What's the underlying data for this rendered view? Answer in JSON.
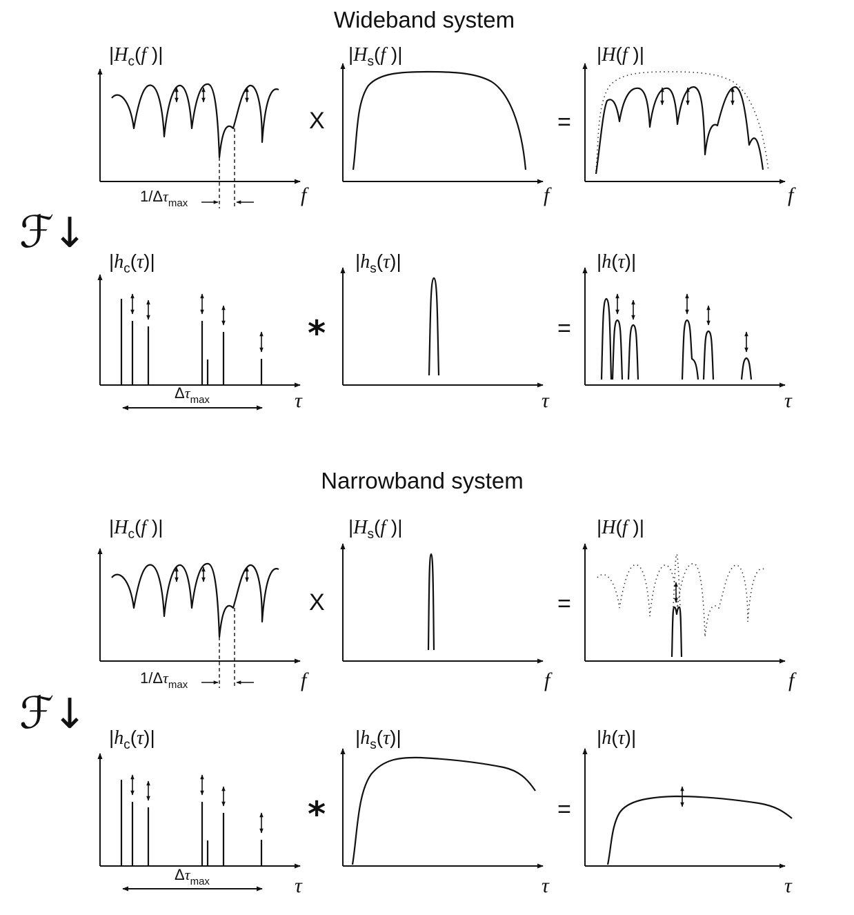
{
  "sections": [
    {
      "title": "Wideband system",
      "freq_row": {
        "channel": {
          "label": "|H_c(f )|",
          "axis": "f",
          "annotation": "1/Δτ_max"
        },
        "operator": "X",
        "system": {
          "label": "|H_s(f )|",
          "axis": "f"
        },
        "equals": "=",
        "result": {
          "label": "|H(f )|",
          "axis": "f"
        }
      },
      "fourier": "ℱ↓",
      "time_row": {
        "channel": {
          "label": "|h_c(τ)|",
          "axis": "τ",
          "annotation": "Δτ_max"
        },
        "operator": "*",
        "system": {
          "label": "|h_s(τ)|",
          "axis": "τ"
        },
        "equals": "=",
        "result": {
          "label": "|h(τ)|",
          "axis": "τ"
        }
      }
    },
    {
      "title": "Narrowband system",
      "freq_row": {
        "channel": {
          "label": "|H_c(f )|",
          "axis": "f",
          "annotation": "1/Δτ_max"
        },
        "operator": "X",
        "system": {
          "label": "|H_s(f )|",
          "axis": "f"
        },
        "equals": "=",
        "result": {
          "label": "|H(f )|",
          "axis": "f"
        }
      },
      "fourier": "ℱ↓",
      "time_row": {
        "channel": {
          "label": "|h_c(τ)|",
          "axis": "τ",
          "annotation": "Δτ_max"
        },
        "operator": "*",
        "system": {
          "label": "|h_s(τ)|",
          "axis": "τ"
        },
        "equals": "=",
        "result": {
          "label": "|h(τ)|",
          "axis": "τ"
        }
      }
    }
  ]
}
